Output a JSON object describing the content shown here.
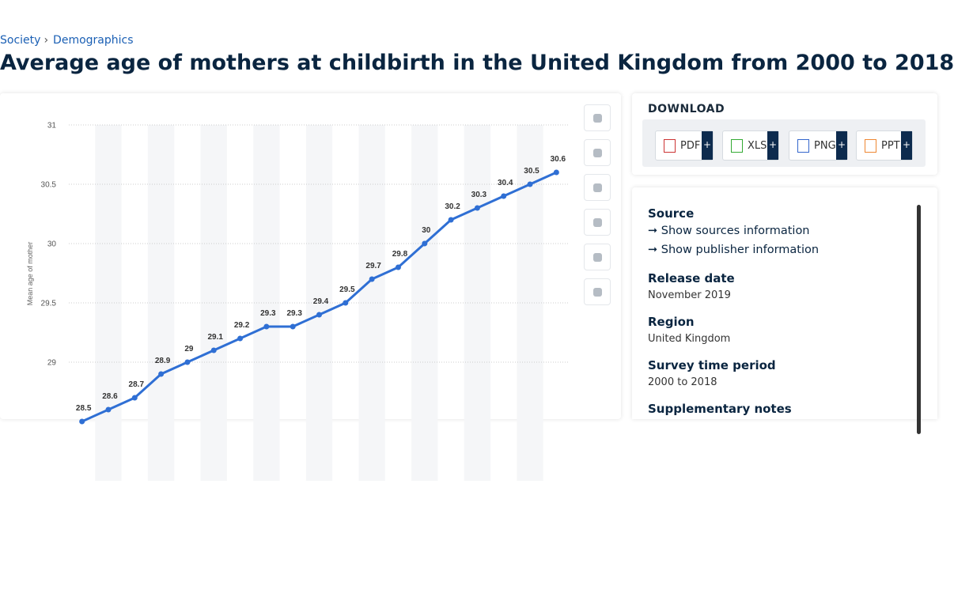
{
  "breadcrumb": [
    "Society",
    "Demographics"
  ],
  "title": "Average age of mothers at childbirth in the United Kingdom from 2000 to 2018",
  "chart_data": {
    "type": "line",
    "y_label": "Mean age of mother",
    "color": "#2f6fd4",
    "values": [
      28.5,
      28.6,
      28.7,
      28.9,
      29,
      29.1,
      29.2,
      29.3,
      29.3,
      29.4,
      29.5,
      29.7,
      29.8,
      30,
      30.2,
      30.3,
      30.4,
      30.5,
      30.6
    ],
    "ylim": [
      28,
      31
    ],
    "yticks": [
      29,
      29.5,
      30,
      30.5,
      31
    ],
    "grid": true
  },
  "download": {
    "heading": "DOWNLOAD",
    "formats": [
      "PDF",
      "XLS",
      "PNG",
      "PPT"
    ]
  },
  "details": {
    "source": "Source",
    "show_sources": "Show sources information",
    "show_publisher": "Show publisher information",
    "release_date": {
      "label": "Release date",
      "value": "November 2019"
    },
    "region": {
      "label": "Region",
      "value": "United Kingdom"
    },
    "survey_period": {
      "label": "Survey time period",
      "value": "2000 to 2018"
    },
    "supplementary_notes": "Supplementary notes"
  }
}
